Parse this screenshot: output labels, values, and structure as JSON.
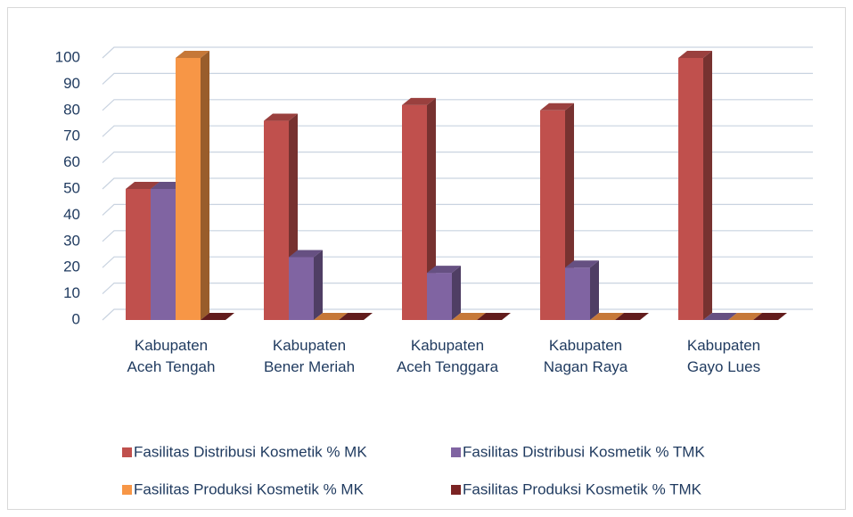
{
  "chart_data": {
    "type": "bar3d",
    "categories": [
      "Kabupaten Aceh Tengah",
      "Kabupaten Bener Meriah",
      "Kabupaten Aceh Tenggara",
      "Kabupaten Nagan Raya",
      "Kabupaten Gayo Lues"
    ],
    "series": [
      {
        "name": "Fasilitas Distribusi Kosmetik % MK",
        "color": "#c0504d",
        "values": [
          50,
          76,
          82,
          80,
          100
        ]
      },
      {
        "name": "Fasilitas Distribusi Kosmetik % TMK",
        "color": "#8064a2",
        "values": [
          50,
          24,
          18,
          20,
          0
        ]
      },
      {
        "name": "Fasilitas Produksi Kosmetik % MK",
        "color": "#f79646",
        "values": [
          100,
          0,
          0,
          0,
          0
        ]
      },
      {
        "name": "Fasilitas Produksi Kosmetik % TMK",
        "color": "#7b2323",
        "values": [
          0,
          0,
          0,
          0,
          0
        ]
      }
    ],
    "ylim": [
      0,
      100
    ],
    "yticks": [
      0,
      10,
      20,
      30,
      40,
      50,
      60,
      70,
      80,
      90,
      100
    ],
    "grid": true,
    "legend": "bottom"
  }
}
